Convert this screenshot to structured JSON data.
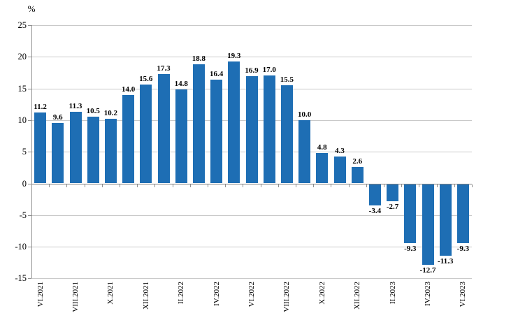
{
  "chart_data": {
    "type": "bar",
    "title": "",
    "ylabel": "%",
    "xlabel": "",
    "values": [
      11.2,
      9.6,
      11.3,
      10.5,
      10.2,
      14.0,
      15.6,
      17.3,
      14.8,
      18.8,
      16.4,
      19.3,
      16.9,
      17.0,
      15.5,
      10.0,
      4.8,
      4.3,
      2.6,
      -3.4,
      -2.7,
      -9.3,
      -12.7,
      -11.3,
      -9.3
    ],
    "bar_labels": [
      "11.2",
      "9.6",
      "11.3",
      "10.5",
      "10.2",
      "14.0",
      "15.6",
      "17.3",
      "14.8",
      "18.8",
      "16.4",
      "19.3",
      "16.9",
      "17.0",
      "15.5",
      "10.0",
      "4.8",
      "4.3",
      "2.6",
      "-3.4",
      "-2.7",
      "-9.3",
      "-12.7",
      "-11.3",
      "-9.3"
    ],
    "x_tick_labels": [
      "VI.2021",
      "VIII.2021",
      "X.2021",
      "XII.2021",
      "II.2022",
      "IV.2022",
      "VI.2022",
      "VIII.2022",
      "X.2022",
      "XII.2022",
      "II.2023",
      "IV.2023",
      "VI.2023"
    ],
    "x_tick_label_every": 2,
    "y_ticks": [
      25,
      20,
      15,
      10,
      5,
      0,
      -5,
      -10,
      -15
    ],
    "ylim": [
      -15,
      25
    ],
    "grid": true,
    "legend": "none",
    "bar_color": "#1e6eb4",
    "gridline_color": "#c9c9c9",
    "axis_color": "#808080"
  }
}
